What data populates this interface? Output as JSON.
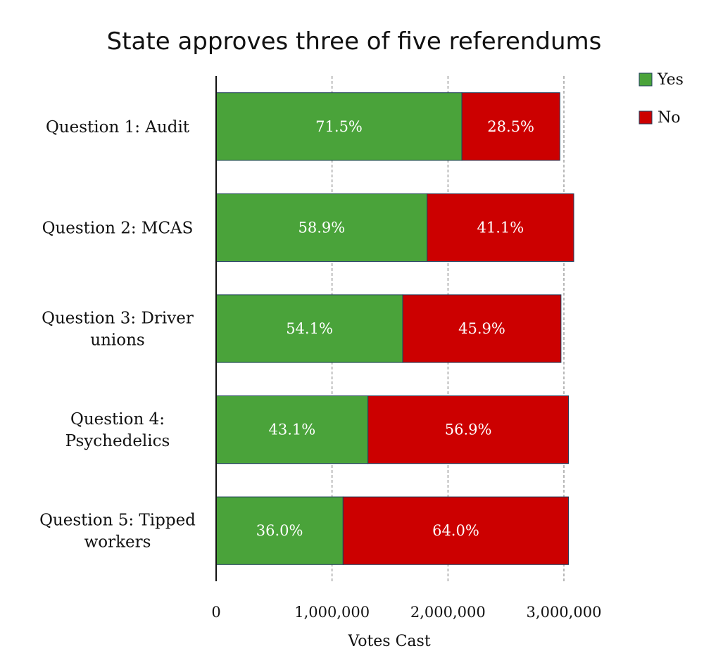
{
  "chart_data": {
    "type": "bar",
    "orientation": "horizontal",
    "stacked": true,
    "title": "State approves three of five referendums",
    "xlabel": "Votes Cast",
    "ylabel": "",
    "xlim": [
      0,
      3000000
    ],
    "x_ticks": [
      0,
      1000000,
      2000000,
      3000000
    ],
    "x_tick_labels": [
      "0",
      "1,000,000",
      "2,000,000",
      "3,000,000"
    ],
    "grid": "vertical dashed",
    "legend_position": "top-right",
    "categories": [
      [
        "Question 1: Audit"
      ],
      [
        "Question 2: MCAS"
      ],
      [
        "Question 3: Driver",
        "unions"
      ],
      [
        "Question 4:",
        "Psychedelics"
      ],
      [
        "Question 5: Tipped",
        "workers"
      ]
    ],
    "series": [
      {
        "name": "Yes",
        "color": "#4aa33a",
        "values": [
          2120000,
          1820000,
          1610000,
          1310000,
          1095000
        ],
        "labels": [
          "71.5%",
          "58.9%",
          "54.1%",
          "43.1%",
          "36.0%"
        ]
      },
      {
        "name": "No",
        "color": "#cc0000",
        "values": [
          845000,
          1265000,
          1365000,
          1730000,
          1945000
        ],
        "labels": [
          "28.5%",
          "41.1%",
          "45.9%",
          "56.9%",
          "64.0%"
        ]
      }
    ]
  }
}
